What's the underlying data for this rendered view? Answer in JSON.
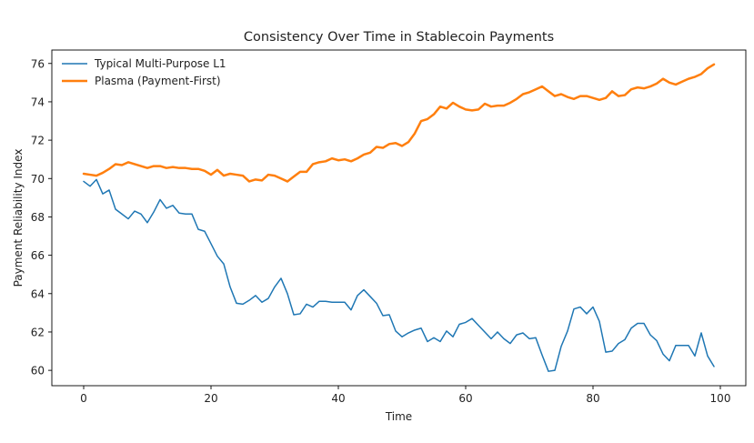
{
  "chart_data": {
    "type": "line",
    "title": "Consistency Over Time in Stablecoin Payments",
    "xlabel": "Time",
    "ylabel": "Payment Reliability Index",
    "xlim": [
      -5,
      104
    ],
    "ylim": [
      59.2,
      76.7
    ],
    "x_ticks": [
      0,
      20,
      40,
      60,
      80,
      100
    ],
    "y_ticks": [
      60,
      62,
      64,
      66,
      68,
      70,
      72,
      74,
      76
    ],
    "x_tick_labels": [
      "0",
      "20",
      "40",
      "60",
      "80",
      "100"
    ],
    "y_tick_labels": [
      "60",
      "62",
      "64",
      "66",
      "68",
      "70",
      "72",
      "74",
      "76"
    ],
    "grid": false,
    "legend_position": "top-left",
    "x": [
      0,
      1,
      2,
      3,
      4,
      5,
      6,
      7,
      8,
      9,
      10,
      11,
      12,
      13,
      14,
      15,
      16,
      17,
      18,
      19,
      20,
      21,
      22,
      23,
      24,
      25,
      26,
      27,
      28,
      29,
      30,
      31,
      32,
      33,
      34,
      35,
      36,
      37,
      38,
      39,
      40,
      41,
      42,
      43,
      44,
      45,
      46,
      47,
      48,
      49,
      50,
      51,
      52,
      53,
      54,
      55,
      56,
      57,
      58,
      59,
      60,
      61,
      62,
      63,
      64,
      65,
      66,
      67,
      68,
      69,
      70,
      71,
      72,
      73,
      74,
      75,
      76,
      77,
      78,
      79,
      80,
      81,
      82,
      83,
      84,
      85,
      86,
      87,
      88,
      89,
      90,
      91,
      92,
      93,
      94,
      95,
      96,
      97,
      98,
      99
    ],
    "series": [
      {
        "name": "Typical Multi-Purpose L1",
        "color": "#1f77b4",
        "line_width": 1.5,
        "values": [
          69.85,
          69.6,
          69.95,
          69.2,
          69.4,
          68.4,
          68.15,
          67.9,
          68.3,
          68.15,
          67.7,
          68.25,
          68.9,
          68.45,
          68.6,
          68.2,
          68.15,
          68.15,
          67.35,
          67.25,
          66.6,
          65.95,
          65.55,
          64.35,
          63.5,
          63.45,
          63.65,
          63.9,
          63.55,
          63.75,
          64.35,
          64.8,
          64.0,
          62.9,
          62.95,
          63.45,
          63.3,
          63.6,
          63.6,
          63.55,
          63.55,
          63.55,
          63.15,
          63.9,
          64.2,
          63.85,
          63.5,
          62.85,
          62.9,
          62.05,
          61.75,
          61.95,
          62.1,
          62.2,
          61.5,
          61.7,
          61.5,
          62.05,
          61.75,
          62.4,
          62.5,
          62.7,
          62.35,
          62.0,
          61.65,
          62.0,
          61.65,
          61.4,
          61.85,
          61.95,
          61.65,
          61.7,
          60.8,
          59.95,
          60.0,
          61.25,
          62.05,
          63.2,
          63.3,
          62.95,
          63.3,
          62.55,
          60.95,
          61.0,
          61.4,
          61.6,
          62.2,
          62.45,
          62.45,
          61.85,
          61.55,
          60.85,
          60.5,
          61.3,
          61.3,
          61.3,
          60.75,
          61.95,
          60.75,
          60.2
        ]
      },
      {
        "name": "Plasma (Payment-First)",
        "color": "#ff7f0e",
        "line_width": 2.5,
        "values": [
          70.25,
          70.2,
          70.15,
          70.3,
          70.5,
          70.75,
          70.7,
          70.85,
          70.75,
          70.65,
          70.55,
          70.65,
          70.65,
          70.55,
          70.6,
          70.55,
          70.55,
          70.5,
          70.5,
          70.4,
          70.2,
          70.45,
          70.15,
          70.25,
          70.2,
          70.15,
          69.85,
          69.95,
          69.9,
          70.2,
          70.15,
          70.0,
          69.85,
          70.1,
          70.35,
          70.35,
          70.75,
          70.85,
          70.9,
          71.05,
          70.95,
          71.0,
          70.9,
          71.05,
          71.25,
          71.35,
          71.65,
          71.6,
          71.8,
          71.85,
          71.7,
          71.9,
          72.35,
          73.0,
          73.1,
          73.35,
          73.75,
          73.65,
          73.95,
          73.75,
          73.6,
          73.55,
          73.6,
          73.9,
          73.75,
          73.8,
          73.8,
          73.95,
          74.15,
          74.4,
          74.5,
          74.65,
          74.8,
          74.55,
          74.3,
          74.4,
          74.25,
          74.15,
          74.3,
          74.3,
          74.2,
          74.1,
          74.2,
          74.55,
          74.3,
          74.35,
          74.65,
          74.75,
          74.7,
          74.8,
          74.95,
          75.2,
          75.0,
          74.9,
          75.05,
          75.2,
          75.3,
          75.45,
          75.75,
          75.95
        ]
      }
    ]
  }
}
